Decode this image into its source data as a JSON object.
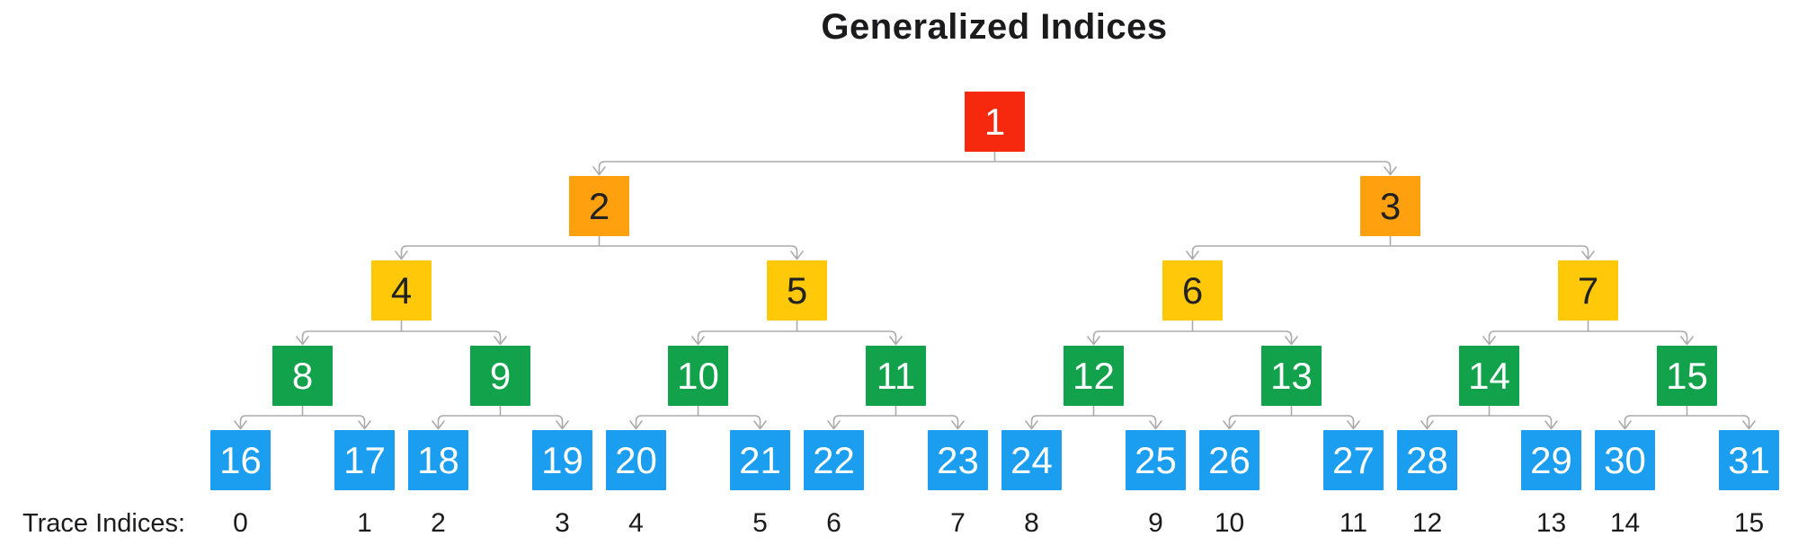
{
  "title": "Generalized Indices",
  "title_color": "#1b1b1e",
  "background_color": "#ffffff",
  "connector_color": "#ababab",
  "trace_row": {
    "label": "Trace Indices:",
    "text_color": "#1b1b1e",
    "indices": [
      0,
      1,
      2,
      3,
      4,
      5,
      6,
      7,
      8,
      9,
      10,
      11,
      12,
      13,
      14,
      15
    ]
  },
  "tree": {
    "levels": [
      {
        "name": "root",
        "fill": "#f6280e",
        "text_color": "#ffffff",
        "values": [
          1
        ]
      },
      {
        "name": "level-2",
        "fill": "#ffa00e",
        "text_color": "#222222",
        "values": [
          2,
          3
        ]
      },
      {
        "name": "level-3",
        "fill": "#ffc90a",
        "text_color": "#222222",
        "values": [
          4,
          5,
          6,
          7
        ]
      },
      {
        "name": "level-4",
        "fill": "#12a24c",
        "text_color": "#ffffff",
        "values": [
          8,
          9,
          10,
          11,
          12,
          13,
          14,
          15
        ]
      },
      {
        "name": "leaves",
        "fill": "#1b9df0",
        "text_color": "#ffffff",
        "values": [
          16,
          17,
          18,
          19,
          20,
          21,
          22,
          23,
          24,
          25,
          26,
          27,
          28,
          29,
          30,
          31
        ]
      }
    ]
  }
}
